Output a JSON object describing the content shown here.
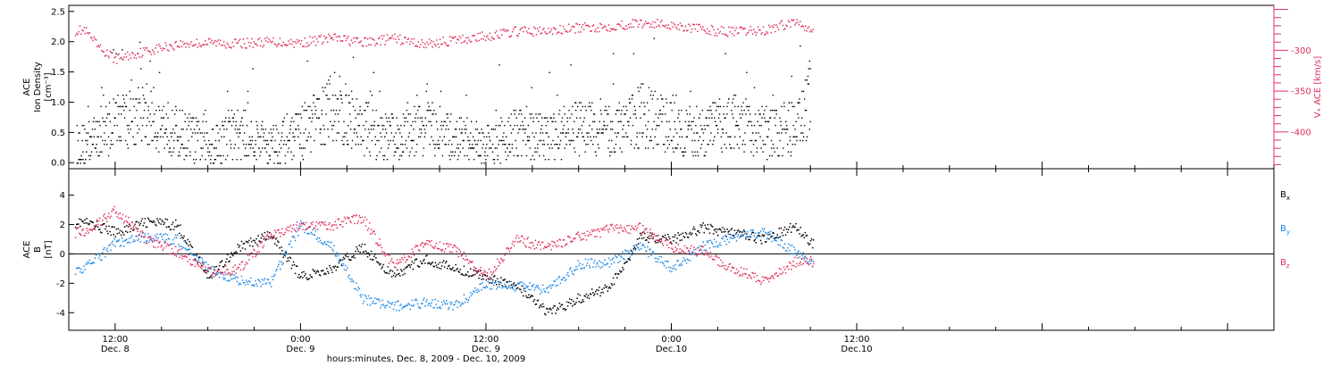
{
  "figure": {
    "xlabel": "hours:minutes, Dec. 8, 2009 - Dec. 10, 2009",
    "x_ticks": [
      {
        "time": "12:00",
        "date": "Dec. 8"
      },
      {
        "time": "0:00",
        "date": "Dec. 9"
      },
      {
        "time": "12:00",
        "date": "Dec. 9"
      },
      {
        "time": "0:00",
        "date": "Dec.10"
      },
      {
        "time": "12:00",
        "date": "Dec.10"
      }
    ]
  },
  "colors": {
    "axis": "#000000",
    "vx": "#e0305a",
    "bx": "#000000",
    "by": "#1f88e5",
    "bz": "#e0305a"
  },
  "chart_data": [
    {
      "type": "scatter",
      "panel": "top",
      "ylabel_left": [
        "ACE",
        "Ion Density",
        "[cm⁻³]"
      ],
      "ylabel_right": "Vₓ ACE [km/s]",
      "ylim_left": [
        -0.1,
        2.6
      ],
      "yticks_left": [
        "0.0",
        "0.5",
        "1.0",
        "1.5",
        "2.0",
        "2.5"
      ],
      "ylim_right": [
        -445,
        -245
      ],
      "yticks_right": [
        "-300",
        "-350",
        "-400"
      ],
      "x_range_hours": [
        -3,
        75
      ],
      "data_end_hour": 45,
      "series": [
        {
          "label": "Ion Density",
          "color_key": "bx",
          "axis": "left",
          "x_hours": [
            -2,
            0,
            2,
            4,
            6,
            8,
            10,
            12,
            14,
            16,
            18,
            20,
            22,
            24,
            26,
            28,
            30,
            32,
            34,
            36,
            38,
            40,
            42,
            44,
            45
          ],
          "values": [
            0.3,
            0.7,
            0.8,
            0.5,
            0.3,
            0.5,
            0.3,
            0.5,
            0.9,
            0.6,
            0.4,
            0.6,
            0.4,
            0.3,
            0.5,
            0.4,
            0.6,
            0.5,
            0.8,
            0.6,
            0.5,
            0.7,
            0.5,
            0.6,
            1.1
          ]
        },
        {
          "label": "Vx",
          "color_key": "vx",
          "axis": "right",
          "x_hours": [
            -2,
            -1,
            0,
            2,
            4,
            6,
            8,
            10,
            12,
            14,
            16,
            18,
            20,
            22,
            24,
            26,
            28,
            30,
            32,
            34,
            36,
            38,
            40,
            42,
            44,
            45
          ],
          "values": [
            -275,
            -298,
            -310,
            -300,
            -292,
            -290,
            -291,
            -289,
            -290,
            -284,
            -290,
            -285,
            -292,
            -287,
            -282,
            -276,
            -276,
            -272,
            -270,
            -266,
            -268,
            -274,
            -277,
            -275,
            -264,
            -272
          ]
        }
      ]
    },
    {
      "type": "scatter",
      "panel": "bottom",
      "ylabel_left": [
        "ACE",
        "B",
        "[nT]"
      ],
      "ylim_left": [
        -5.2,
        5.8
      ],
      "yticks_left": [
        "4",
        "2",
        "0",
        "-2",
        "-4"
      ],
      "zero_line": true,
      "x_range_hours": [
        -3,
        75
      ],
      "series": [
        {
          "label": "Bx",
          "color_key": "bx",
          "x_hours": [
            -2,
            0,
            2,
            4,
            6,
            8,
            10,
            12,
            14,
            16,
            18,
            20,
            22,
            24,
            26,
            28,
            30,
            32,
            34,
            36,
            38,
            40,
            42,
            44,
            45
          ],
          "values": [
            2.2,
            1.5,
            2.2,
            2.0,
            -1.5,
            0.5,
            1.3,
            -1.5,
            -1.0,
            0.5,
            -1.5,
            -0.3,
            -1.0,
            -1.5,
            -2.2,
            -4.0,
            -3.0,
            -2.2,
            1.2,
            1.0,
            1.8,
            1.5,
            1.0,
            2.0,
            0.8
          ]
        },
        {
          "label": "By",
          "color_key": "by",
          "x_hours": [
            -2,
            0,
            2,
            4,
            6,
            8,
            10,
            12,
            14,
            16,
            18,
            20,
            22,
            24,
            26,
            28,
            30,
            32,
            34,
            36,
            38,
            40,
            42,
            44,
            45
          ],
          "values": [
            -1.0,
            0.8,
            1.2,
            1.0,
            -1.0,
            -1.8,
            -2.0,
            2.0,
            0.5,
            -3.0,
            -3.5,
            -3.3,
            -3.5,
            -2.0,
            -2.2,
            -2.4,
            -0.7,
            -0.5,
            0.5,
            -1.0,
            0.5,
            1.2,
            1.5,
            0.2,
            -0.5
          ]
        },
        {
          "label": "Bz",
          "color_key": "bz",
          "x_hours": [
            -2,
            0,
            2,
            4,
            6,
            8,
            10,
            12,
            14,
            16,
            18,
            20,
            22,
            24,
            26,
            28,
            30,
            32,
            34,
            36,
            38,
            40,
            42,
            44,
            45
          ],
          "values": [
            1.5,
            3.0,
            1.0,
            0.2,
            -1.2,
            -1.0,
            1.3,
            2.0,
            2.0,
            2.5,
            -0.8,
            0.8,
            0.3,
            -1.5,
            1.0,
            0.5,
            1.2,
            1.7,
            1.8,
            0.5,
            0.2,
            -1.0,
            -1.8,
            -0.5,
            -0.5
          ]
        }
      ],
      "legend": [
        "Bx",
        "By",
        "Bz"
      ]
    }
  ]
}
